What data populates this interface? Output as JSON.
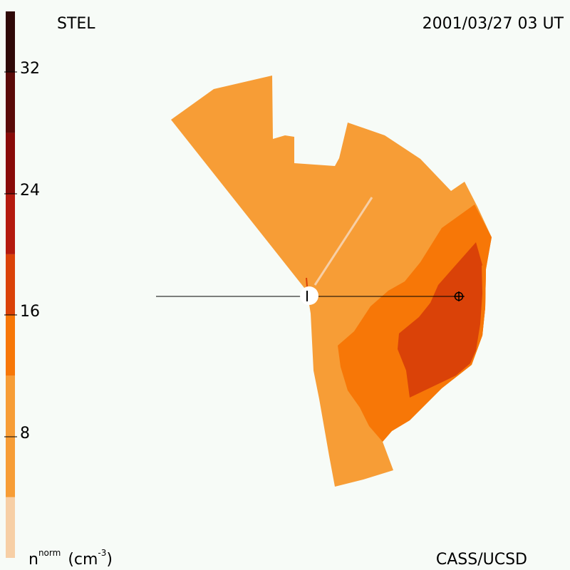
{
  "header": {
    "instrument": "STEL",
    "timestamp": "2001/03/27 03 UT"
  },
  "footer": {
    "quantity_base": "n",
    "quantity_sup": "norm",
    "quantity_unit_open": "(cm",
    "quantity_unit_sup": "-3",
    "quantity_unit_close": ")",
    "credit": "CASS/UCSD"
  },
  "color_scale": {
    "tick_labels": [
      "32",
      "24",
      "16",
      "8"
    ],
    "bands": [
      {
        "from": 0,
        "to": 4,
        "color": "#f7cfa6"
      },
      {
        "from": 4,
        "to": 12,
        "color": "#f79d36"
      },
      {
        "from": 12,
        "to": 16,
        "color": "#f77707"
      },
      {
        "from": 16,
        "to": 20,
        "color": "#da4208"
      },
      {
        "from": 20,
        "to": 24,
        "color": "#b41a0e"
      },
      {
        "from": 24,
        "to": 28,
        "color": "#880a08"
      },
      {
        "from": 28,
        "to": 32,
        "color": "#5a0a08"
      },
      {
        "from": 32,
        "to": 36,
        "color": "#2f0908"
      }
    ]
  },
  "symbols": {
    "sun": "sun-disk",
    "earth": "earth-circle-cross"
  }
}
